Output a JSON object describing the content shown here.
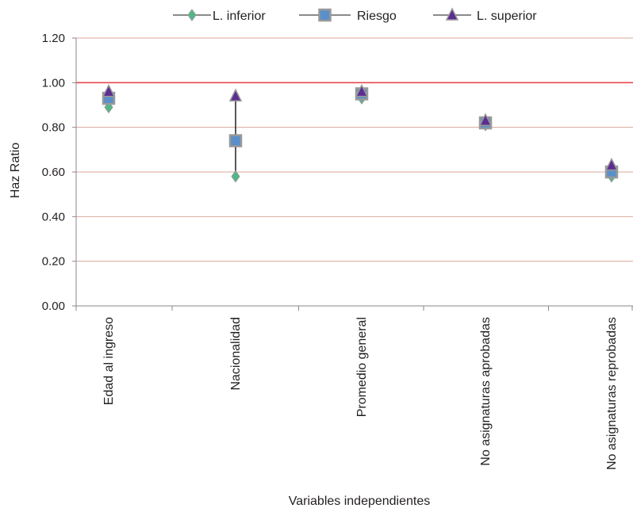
{
  "chart_data": {
    "type": "scatter",
    "title": "",
    "xlabel": "Variables independientes",
    "ylabel": "Haz Ratio",
    "categories": [
      "Edad al ingreso",
      "Nacionalidad",
      "Promedio general",
      "No asignaturas aprobadas",
      "No asignaturas reprobadas"
    ],
    "ylim": [
      0,
      1.2
    ],
    "yticks": [
      "0.00",
      "0.20",
      "0.40",
      "0.60",
      "0.80",
      "1.00",
      "1.20"
    ],
    "reference_line": 1.0,
    "grid": true,
    "legend_position": "top",
    "series": [
      {
        "name": "L. inferior",
        "marker": "diamond",
        "color": "#4fb887",
        "values": [
          0.89,
          0.58,
          0.93,
          0.81,
          0.58
        ]
      },
      {
        "name": "Riesgo",
        "marker": "square",
        "color": "#5b8fc9",
        "values": [
          0.93,
          0.74,
          0.95,
          0.82,
          0.6
        ]
      },
      {
        "name": "L. superior",
        "marker": "triangle",
        "color": "#5c2d91",
        "values": [
          0.96,
          0.94,
          0.96,
          0.83,
          0.63
        ]
      }
    ]
  },
  "colors": {
    "gridline": "#d8a89c",
    "reference_line": "#e8454f",
    "axis": "#8a8a8a",
    "marker_border": "#999999",
    "error_bar": "#231f20"
  }
}
